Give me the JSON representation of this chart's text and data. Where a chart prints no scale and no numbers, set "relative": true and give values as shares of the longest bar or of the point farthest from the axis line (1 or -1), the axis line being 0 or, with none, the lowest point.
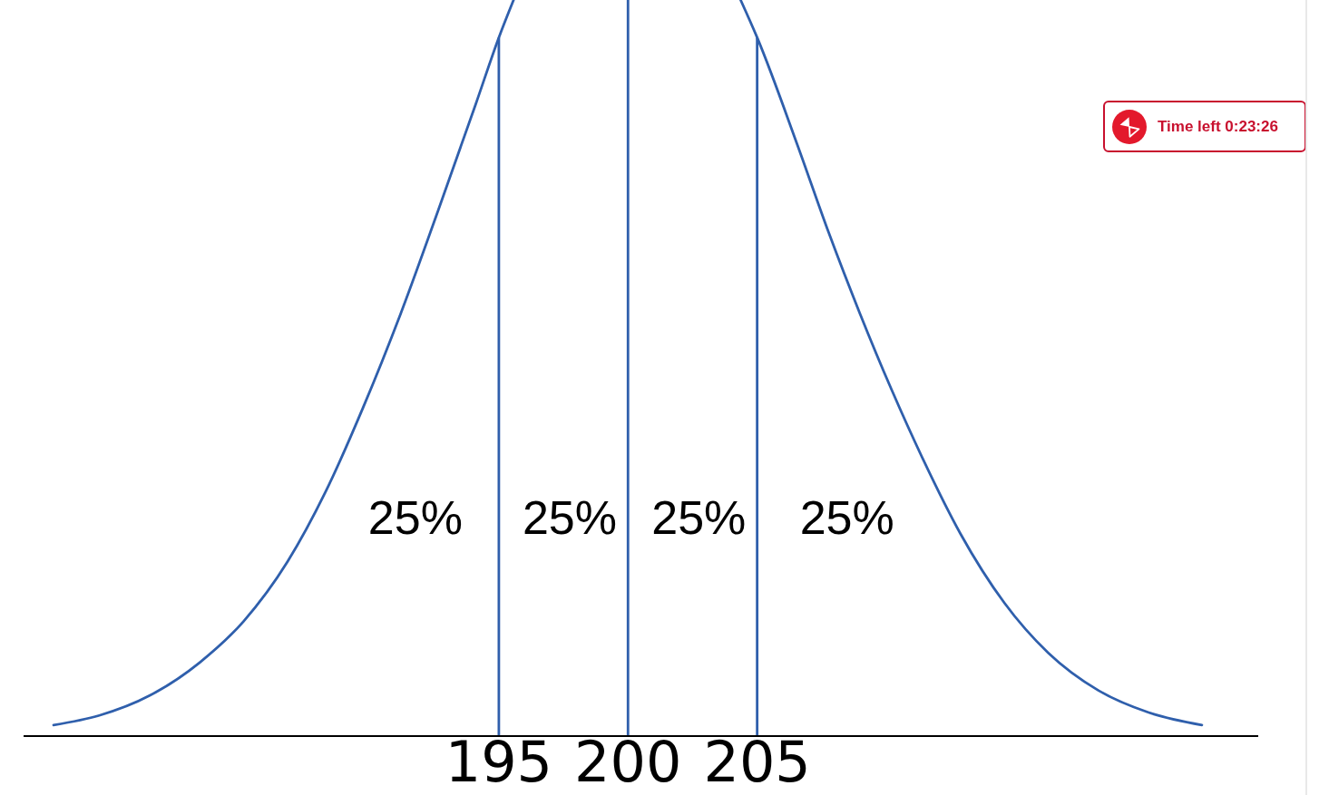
{
  "chart_data": {
    "type": "line",
    "relative": true,
    "color": "#2f5fac",
    "marker": "none",
    "x": [
      177.76,
      179.53,
      181.48,
      183.42,
      185.12,
      186.82,
      188.28,
      189.74,
      191.2,
      192.65,
      194.11,
      195,
      195.57,
      200,
      204.36,
      205,
      206.55,
      207.77,
      208.98,
      210.2,
      211.41,
      212.87,
      214.57,
      216.27,
      218.21,
      220.16,
      222.22
    ],
    "values": [
      0.015,
      0.028,
      0.055,
      0.1,
      0.156,
      0.237,
      0.331,
      0.446,
      0.574,
      0.714,
      0.859,
      0.949,
      1,
      null,
      1,
      0.949,
      0.804,
      0.684,
      0.574,
      0.471,
      0.377,
      0.275,
      0.181,
      0.113,
      0.062,
      0.032,
      0.015
    ],
    "xlim": [
      176.6,
      224.4
    ],
    "xticks": [
      195,
      200,
      205
    ],
    "ref_lines": [
      {
        "axis": "x",
        "value": 195,
        "color": "#2f5fac"
      },
      {
        "axis": "x",
        "value": 200,
        "color": "#2f5fac"
      },
      {
        "axis": "x",
        "value": 205,
        "color": "#2f5fac"
      }
    ],
    "annotations": [
      "25%",
      "25%",
      "25%",
      "25%",
      "Time left 0:23:26"
    ]
  }
}
